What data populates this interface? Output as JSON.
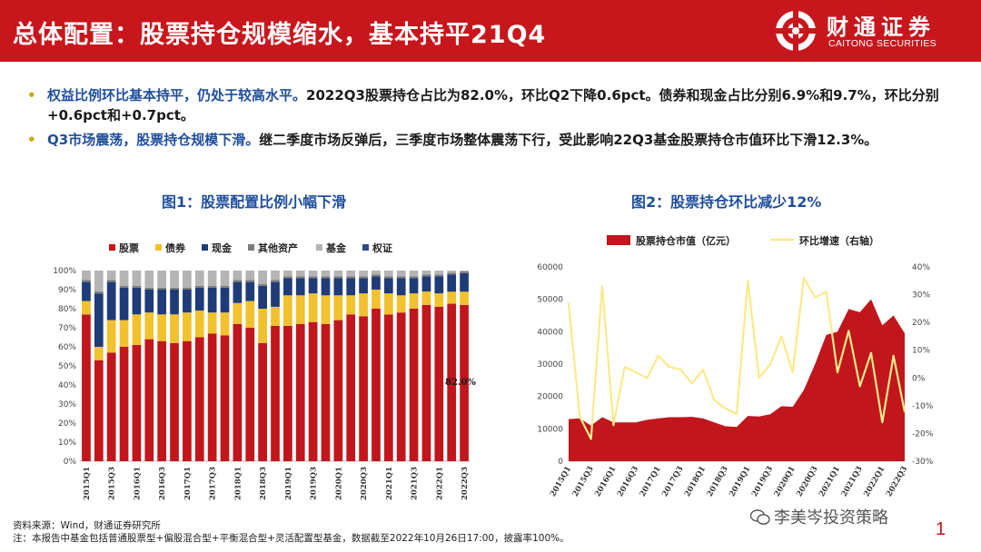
{
  "header": {
    "title": "总体配置：股票持仓规模缩水，基本持平21Q4",
    "logo_cn": "财通证券",
    "logo_en": "CAITONG SECURITIES",
    "color": "#c8161d"
  },
  "bullets": [
    {
      "head": "权益比例环比基本持平，仍处于较高水平。",
      "body": "2022Q3股票持仓占比为82.0%，环比Q2下降0.6pct。债券和现金占比分别6.9%和9.7%，环比分别+0.6pct和+0.7pct。"
    },
    {
      "head": "Q3市场震荡，股票持仓规模下滑。",
      "body": "继二季度市场反弹后，三季度市场整体震荡下行，受此影响22Q3基金股票持仓市值环比下滑12.3%。"
    }
  ],
  "footer": {
    "source": "资料来源：Wind，财通证券研究所",
    "note": "注：本报告中基金包括普通股票型+偏股混合型+平衡混合型+灵活配置型基金，数据截至2022年10月26日17:00，披露率100%。",
    "watermark": "李美岑投资策略",
    "page": "1"
  },
  "chart_data": [
    {
      "type": "bar",
      "stacked": true,
      "title": "图1：股票配置比例小幅下滑",
      "categories": [
        "2015Q1",
        "2015Q2",
        "2015Q3",
        "2015Q4",
        "2016Q1",
        "2016Q2",
        "2016Q3",
        "2016Q4",
        "2017Q1",
        "2017Q2",
        "2017Q3",
        "2017Q4",
        "2018Q1",
        "2018Q2",
        "2018Q3",
        "2018Q4",
        "2019Q1",
        "2019Q2",
        "2019Q3",
        "2019Q4",
        "2020Q1",
        "2020Q2",
        "2020Q3",
        "2020Q4",
        "2021Q1",
        "2021Q2",
        "2021Q3",
        "2021Q4",
        "2022Q1",
        "2022Q2",
        "2022Q3"
      ],
      "xtick_labels": [
        "2015Q1",
        "2015Q3",
        "2016Q1",
        "2016Q3",
        "2017Q1",
        "2017Q3",
        "2018Q1",
        "2018Q3",
        "2019Q1",
        "2019Q3",
        "2020Q1",
        "2020Q3",
        "2021Q1",
        "2021Q3",
        "2022Q1",
        "2022Q3"
      ],
      "yticks": [
        "0%",
        "10%",
        "20%",
        "30%",
        "40%",
        "50%",
        "60%",
        "70%",
        "80%",
        "90%",
        "100%"
      ],
      "ylim": [
        0,
        100
      ],
      "series": [
        {
          "name": "股票",
          "color": "#c0161c",
          "values": [
            77,
            53,
            57,
            60,
            61,
            64,
            63,
            62,
            63,
            65,
            67,
            66,
            72,
            70,
            62,
            71,
            71,
            72,
            73,
            72,
            74,
            77,
            76,
            80,
            77,
            78,
            80,
            82,
            81,
            82.6,
            82.0
          ]
        },
        {
          "name": "债券",
          "color": "#f2c12e",
          "values": [
            7,
            7,
            17,
            14,
            16,
            14,
            14,
            15,
            15,
            14,
            11,
            12,
            11,
            14,
            18,
            10,
            16,
            15,
            15,
            15,
            13,
            10,
            12,
            10,
            11,
            9,
            8,
            7,
            7,
            6.3,
            6.9
          ]
        },
        {
          "name": "现金",
          "color": "#1f3c78",
          "values": [
            10,
            28,
            20,
            17,
            14,
            12,
            13,
            13,
            12,
            12,
            13,
            13,
            11,
            10,
            12,
            13,
            9,
            9,
            8,
            9,
            9,
            9,
            8,
            7,
            8,
            9,
            8,
            8,
            9,
            9.0,
            9.7
          ]
        },
        {
          "name": "其他资产",
          "color": "#7d7d7d",
          "values": [
            1,
            1,
            1,
            1,
            1,
            1,
            1,
            1,
            1,
            1,
            1,
            1,
            1,
            1,
            1,
            1,
            1,
            1,
            1,
            1,
            1,
            1,
            1,
            1,
            1,
            1,
            1,
            1,
            1,
            1,
            1
          ]
        },
        {
          "name": "基金",
          "color": "#b4b4b4",
          "values": [
            5,
            11,
            5,
            8,
            8,
            9,
            9,
            9,
            9,
            8,
            8,
            8,
            5,
            5,
            7,
            5,
            3,
            3,
            3,
            3,
            3,
            3,
            3,
            2,
            3,
            3,
            3,
            2,
            2,
            1.1,
            0.4
          ]
        },
        {
          "name": "权证",
          "color": "#2c4a86",
          "values": [
            0,
            0,
            0,
            0,
            0,
            0,
            0,
            0,
            0,
            0,
            0,
            0,
            0,
            0,
            0,
            0,
            0,
            0,
            0,
            0,
            0,
            0,
            0,
            0,
            0,
            0,
            0,
            0,
            0,
            0,
            0
          ]
        }
      ],
      "annotation": "82.0%"
    },
    {
      "type": "area+line",
      "title": "图2：股票持仓环比减少12%",
      "categories": [
        "2015Q1",
        "2015Q2",
        "2015Q3",
        "2015Q4",
        "2016Q1",
        "2016Q2",
        "2016Q3",
        "2016Q4",
        "2017Q1",
        "2017Q2",
        "2017Q3",
        "2017Q4",
        "2018Q1",
        "2018Q2",
        "2018Q3",
        "2018Q4",
        "2019Q1",
        "2019Q2",
        "2019Q3",
        "2019Q4",
        "2020Q1",
        "2020Q2",
        "2020Q3",
        "2020Q4",
        "2021Q1",
        "2021Q2",
        "2021Q3",
        "2021Q4",
        "2022Q1",
        "2022Q2",
        "2022Q3"
      ],
      "xtick_labels": [
        "2015Q1",
        "2015Q3",
        "2016Q1",
        "2016Q3",
        "2017Q1",
        "2017Q3",
        "2018Q1",
        "2018Q3",
        "2019Q1",
        "2019Q3",
        "2020Q1",
        "2020Q3",
        "2021Q1",
        "2021Q3",
        "2022Q1",
        "2022Q3"
      ],
      "area_series": {
        "name": "股票持仓市值（亿元）",
        "color": "#c0161c",
        "values": [
          13000,
          13200,
          11000,
          13600,
          12000,
          12000,
          12000,
          12800,
          13200,
          13600,
          13600,
          13700,
          13200,
          12000,
          10800,
          10600,
          14000,
          13800,
          14500,
          17000,
          16800,
          22000,
          30000,
          39000,
          40000,
          47000,
          46000,
          50000,
          42000,
          45000,
          39500
        ]
      },
      "line_series": {
        "name": "环比增速（右轴）",
        "color": "#fce98a",
        "values": [
          27,
          -14,
          -22,
          33,
          -17,
          4,
          2,
          0,
          8,
          4,
          3,
          -2,
          3,
          -8,
          -11,
          -13,
          35,
          0,
          5,
          15,
          2,
          36,
          29,
          31,
          2,
          17,
          -3,
          9,
          -16,
          8,
          -12.3
        ]
      },
      "left_yticks": [
        "0",
        "10000",
        "20000",
        "30000",
        "40000",
        "50000",
        "60000"
      ],
      "left_ylim": [
        0,
        60000
      ],
      "right_yticks": [
        "-30%",
        "-20%",
        "-10%",
        "0%",
        "10%",
        "20%",
        "30%",
        "40%"
      ],
      "right_ylim": [
        -30,
        40
      ]
    }
  ]
}
